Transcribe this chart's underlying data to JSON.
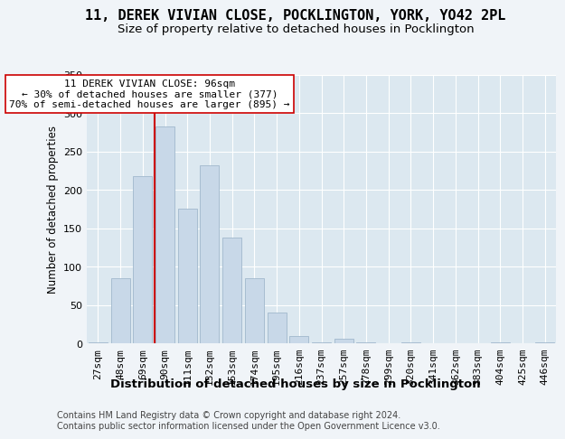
{
  "title1": "11, DEREK VIVIAN CLOSE, POCKLINGTON, YORK, YO42 2PL",
  "title2": "Size of property relative to detached houses in Pocklington",
  "xlabel": "Distribution of detached houses by size in Pocklington",
  "ylabel": "Number of detached properties",
  "categories": [
    "27sqm",
    "48sqm",
    "69sqm",
    "90sqm",
    "111sqm",
    "132sqm",
    "153sqm",
    "174sqm",
    "195sqm",
    "216sqm",
    "237sqm",
    "257sqm",
    "278sqm",
    "299sqm",
    "320sqm",
    "341sqm",
    "362sqm",
    "383sqm",
    "404sqm",
    "425sqm",
    "446sqm"
  ],
  "values": [
    2,
    85,
    218,
    283,
    175,
    232,
    138,
    85,
    40,
    10,
    2,
    6,
    2,
    0,
    2,
    0,
    0,
    0,
    2,
    0,
    2
  ],
  "bar_color": "#c8d8e8",
  "bar_edge_color": "#a0b8cc",
  "vline_pos": 2.55,
  "vline_color": "#cc0000",
  "annotation_text": "11 DEREK VIVIAN CLOSE: 96sqm\n← 30% of detached houses are smaller (377)\n70% of semi-detached houses are larger (895) →",
  "annotation_box_color": "#ffffff",
  "annotation_box_edge_color": "#cc0000",
  "ylim": [
    0,
    350
  ],
  "yticks": [
    0,
    50,
    100,
    150,
    200,
    250,
    300,
    350
  ],
  "fig_background_color": "#f0f4f8",
  "plot_background_color": "#dce8f0",
  "grid_color": "#ffffff",
  "footer_text": "Contains HM Land Registry data © Crown copyright and database right 2024.\nContains public sector information licensed under the Open Government Licence v3.0.",
  "title1_fontsize": 11,
  "title2_fontsize": 9.5,
  "xlabel_fontsize": 9.5,
  "ylabel_fontsize": 8.5,
  "tick_fontsize": 8,
  "annotation_fontsize": 8,
  "footer_fontsize": 7
}
